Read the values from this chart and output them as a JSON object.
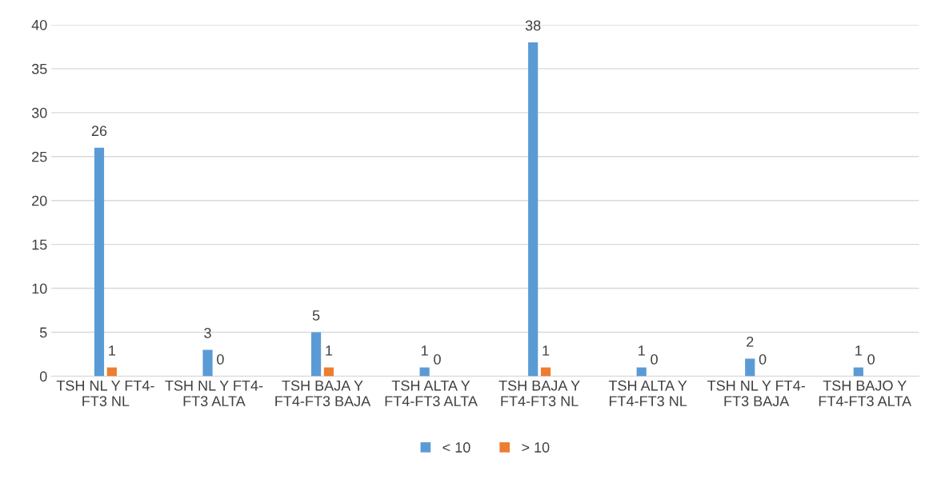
{
  "chart_data": {
    "type": "bar",
    "categories": [
      "TSH NL Y FT4-\nFT3 NL",
      "TSH NL Y FT4-\nFT3 ALTA",
      "TSH BAJA Y\nFT4-FT3 BAJA",
      "TSH ALTA Y\nFT4-FT3 ALTA",
      "TSH BAJA Y\nFT4-FT3 NL",
      "TSH ALTA Y\nFT4-FT3 NL",
      "TSH NL Y FT4-\nFT3 BAJA",
      "TSH BAJO Y\nFT4-FT3 ALTA"
    ],
    "series": [
      {
        "name": "< 10",
        "color": "#5b9bd5",
        "values": [
          26,
          3,
          5,
          1,
          38,
          1,
          2,
          1
        ]
      },
      {
        "name": "> 10",
        "color": "#ed7d31",
        "values": [
          1,
          0,
          1,
          0,
          1,
          0,
          0,
          0
        ]
      }
    ],
    "ylim": [
      0,
      40
    ],
    "yticks": [
      0,
      5,
      10,
      15,
      20,
      25,
      30,
      35,
      40
    ],
    "grid": "y",
    "legend": "bottom",
    "data_labels": true
  }
}
